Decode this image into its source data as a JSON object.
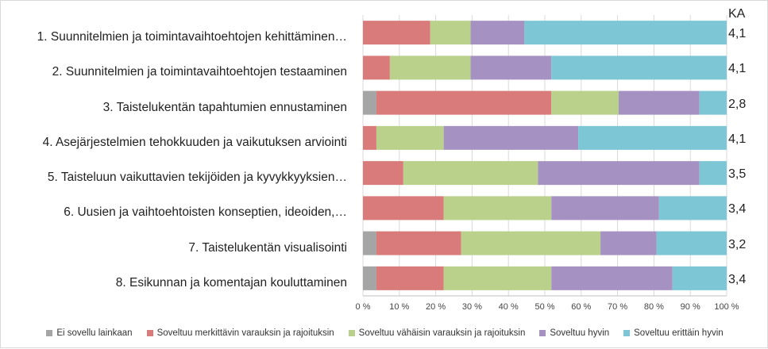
{
  "chart_data": {
    "type": "bar",
    "orientation": "horizontal",
    "stacked": "percent",
    "categories": [
      "1. Suunnitelmien ja toimintavaihtoehtojen kehittäminen…",
      "2. Suunnitelmien ja toimintavaihtoehtojen testaaminen",
      "3. Taistelukentän tapahtumien ennustaminen",
      "4. Asejärjestelmien tehokkuuden ja vaikutuksen arviointi",
      "5. Taisteluun vaikuttavien tekijöiden ja kyvykkyyksien…",
      "6. Uusien ja vaihtoehtoisten konseptien, ideoiden,…",
      "7. Taistelukentän visualisointi",
      "8. Esikunnan ja komentajan kouluttaminen"
    ],
    "series": [
      {
        "name": "Ei sovellu lainkaan",
        "color": "#a5a5a5",
        "values": [
          0,
          0,
          3.7,
          0,
          0,
          0,
          3.7,
          3.7
        ]
      },
      {
        "name": "Soveltuu merkittävin varauksin ja rajoituksin",
        "color": "#d97b7b",
        "values": [
          18.5,
          7.4,
          48.1,
          3.7,
          11.1,
          22.2,
          23.3,
          18.5
        ]
      },
      {
        "name": "Soveltuu vähäisin varauksin ja rajoituksin",
        "color": "#b9d18b",
        "values": [
          11.1,
          22.2,
          18.5,
          18.5,
          37.0,
          29.6,
          38.3,
          29.6
        ]
      },
      {
        "name": "Soveltuu hyvin",
        "color": "#a592c2",
        "values": [
          14.8,
          22.2,
          22.2,
          37.0,
          44.4,
          29.6,
          15.4,
          33.3
        ]
      },
      {
        "name": "Soveltuu erittäin hyvin",
        "color": "#7cc6d6",
        "values": [
          55.6,
          48.2,
          7.5,
          40.8,
          7.5,
          18.6,
          19.3,
          14.9
        ]
      }
    ],
    "x_ticks": [
      "0 %",
      "10 %",
      "20 %",
      "30 %",
      "40 %",
      "50 %",
      "60 %",
      "70 %",
      "80 %",
      "90 %",
      "100 %"
    ],
    "xlim": [
      0,
      100
    ],
    "ka_header": "KA",
    "ka_values": [
      "4,1",
      "4,1",
      "2,8",
      "4,1",
      "3,5",
      "3,4",
      "3,2",
      "3,4"
    ],
    "legend_position": "bottom",
    "grid": "vertical"
  }
}
